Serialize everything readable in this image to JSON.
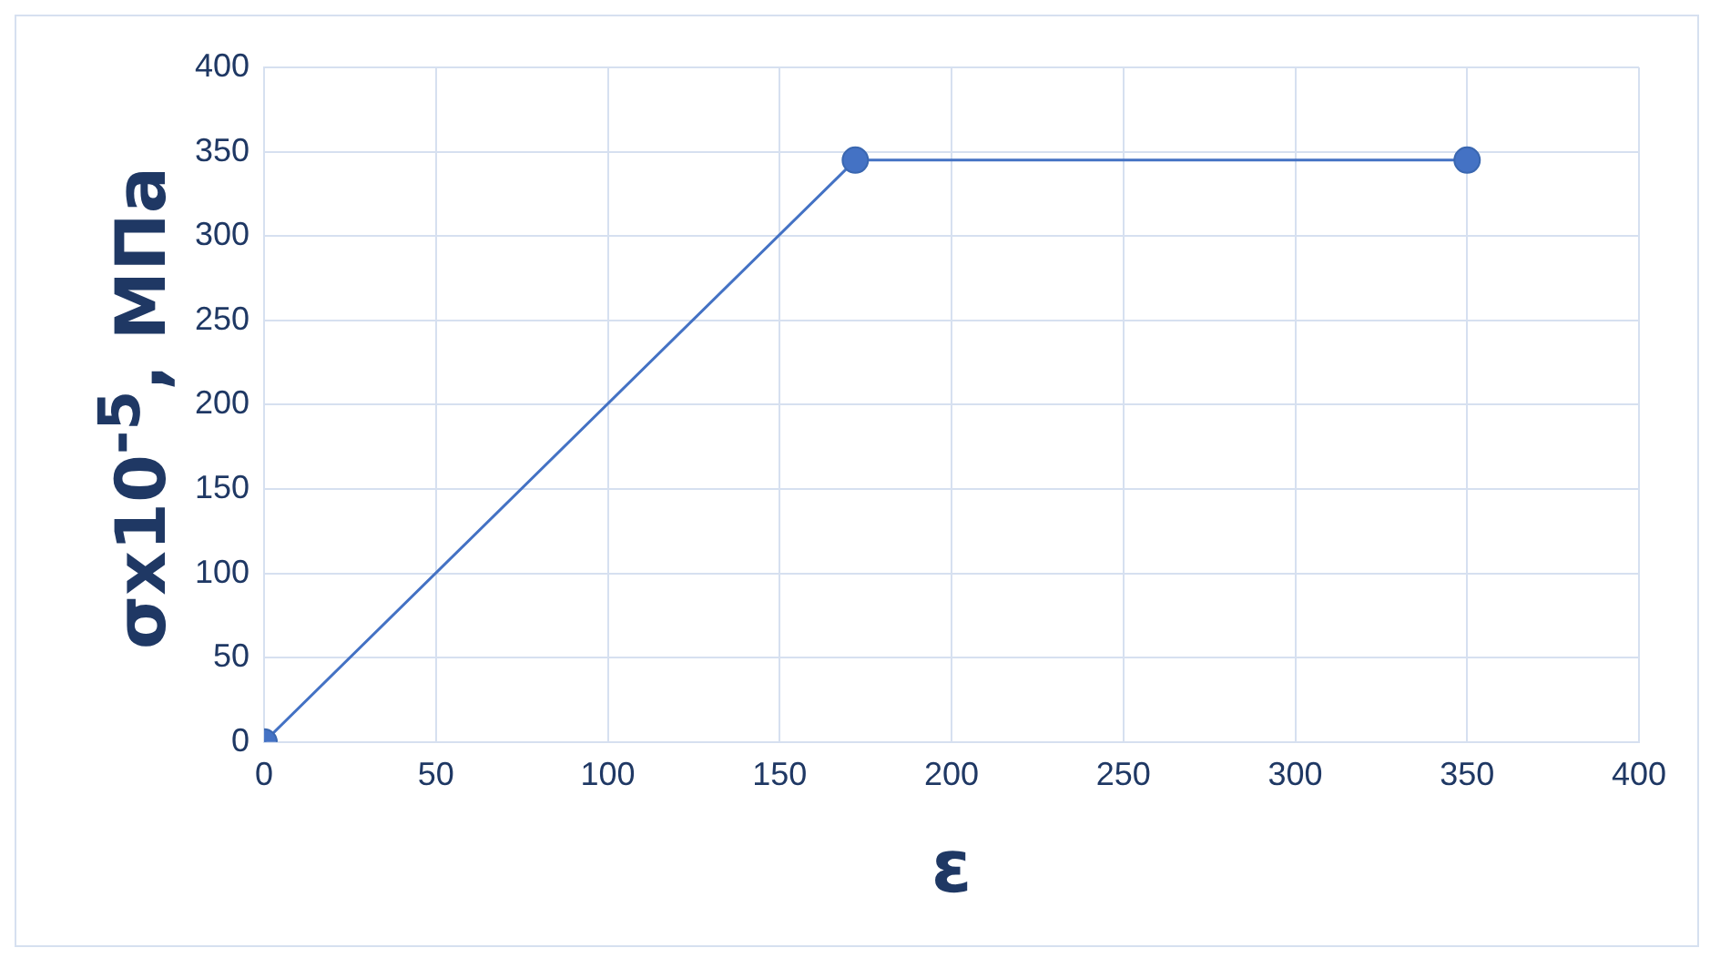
{
  "chart_data": {
    "type": "line",
    "xlabel": "ε",
    "ylabel": "σx10$^{-5}$, МПа",
    "x": [
      0,
      172,
      350
    ],
    "series": [
      {
        "color": "#4472c4",
        "values": [
          0,
          345,
          345
        ]
      }
    ],
    "xlim": [
      0,
      400
    ],
    "xticks": [
      0,
      50,
      100,
      150,
      200,
      250,
      300,
      350,
      400
    ],
    "ylim": [
      0,
      400
    ],
    "yticks": [
      0,
      50,
      100,
      150,
      200,
      250,
      300,
      350,
      400
    ],
    "grid": true,
    "legend": false,
    "marker": "circle",
    "line_style": "solid"
  }
}
